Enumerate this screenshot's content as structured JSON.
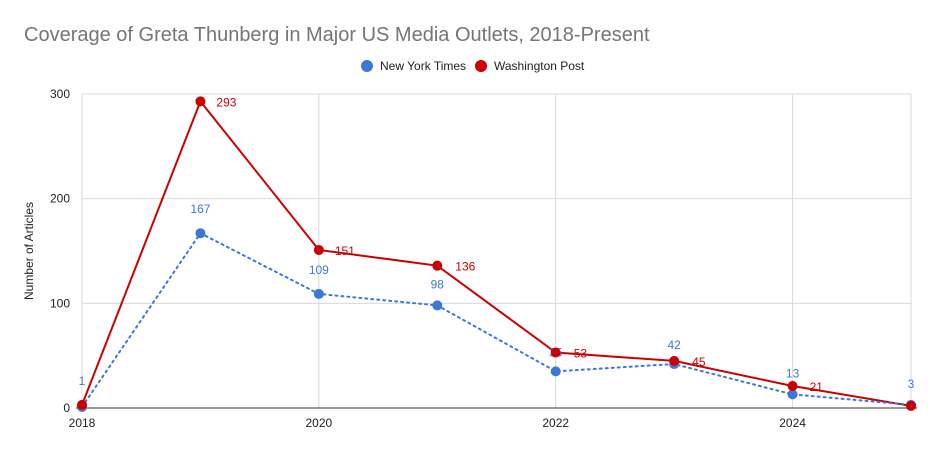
{
  "chart_data": {
    "type": "line",
    "title": "Coverage of Greta Thunberg in Major US Media Outlets, 2018-Present",
    "xlabel": "",
    "ylabel": "Number of Articles",
    "x": [
      2018,
      2019,
      2020,
      2021,
      2022,
      2023,
      2024,
      2025
    ],
    "xlim": [
      2018,
      2025
    ],
    "ylim": [
      0,
      300
    ],
    "xticks": [
      "2018",
      "2020",
      "2022",
      "2024"
    ],
    "xtick_values": [
      2018,
      2020,
      2022,
      2024
    ],
    "yticks": [
      "0",
      "100",
      "200",
      "300"
    ],
    "ytick_values": [
      0,
      100,
      200,
      300
    ],
    "grid": true,
    "legend_position": "top",
    "series": [
      {
        "name": "New York Times",
        "color": "#3c78d8",
        "style": "dotted",
        "values": [
          1,
          167,
          109,
          98,
          35,
          42,
          13,
          3
        ],
        "labels": [
          "1",
          "167",
          "109",
          "98",
          "35",
          "42",
          "13",
          "3"
        ]
      },
      {
        "name": "Washington Post",
        "color": "#cc0000",
        "style": "solid",
        "values": [
          3,
          293,
          151,
          136,
          53,
          45,
          21,
          2
        ],
        "labels": [
          "",
          "293",
          "151",
          "136",
          "53",
          "45",
          "21",
          ""
        ]
      }
    ]
  }
}
